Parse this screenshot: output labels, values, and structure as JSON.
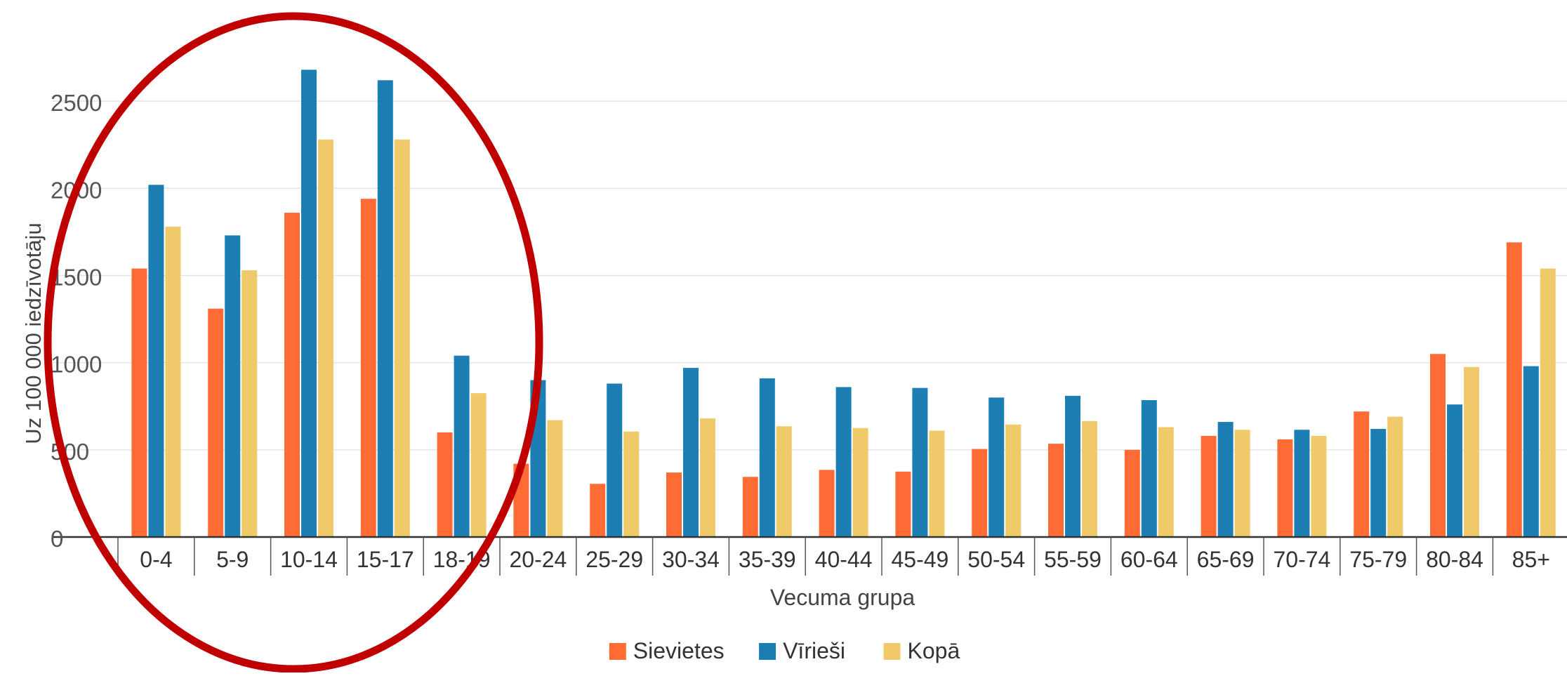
{
  "chart_data": {
    "type": "bar",
    "xlabel": "Vecuma grupa",
    "ylabel": "Uz 100 000 iedzīvotāju",
    "ylim": [
      0,
      2500
    ],
    "yticks": [
      0,
      500,
      1000,
      1500,
      2000,
      2500
    ],
    "grid": true,
    "legend_position": "bottom",
    "categories": [
      "0-4",
      "5-9",
      "10-14",
      "15-17",
      "18-19",
      "20-24",
      "25-29",
      "30-34",
      "35-39",
      "40-44",
      "45-49",
      "50-54",
      "55-59",
      "60-64",
      "65-69",
      "70-74",
      "75-79",
      "80-84",
      "85+"
    ],
    "series": [
      {
        "name": "Sievietes",
        "color": "#FF6B35",
        "values": [
          1540,
          1310,
          1860,
          1940,
          600,
          420,
          305,
          370,
          345,
          385,
          375,
          505,
          535,
          500,
          580,
          560,
          720,
          1050,
          1690
        ]
      },
      {
        "name": "Vīrieši",
        "color": "#1C7EB2",
        "values": [
          2020,
          1730,
          2680,
          2620,
          1040,
          900,
          880,
          970,
          910,
          860,
          855,
          800,
          810,
          785,
          660,
          615,
          620,
          760,
          980
        ]
      },
      {
        "name": "Kopā",
        "color": "#F0C96A",
        "values": [
          1780,
          1530,
          2280,
          2280,
          825,
          670,
          605,
          680,
          635,
          625,
          610,
          645,
          665,
          630,
          615,
          580,
          690,
          975,
          1540
        ]
      }
    ],
    "annotation": {
      "shape": "ellipse",
      "color": "#C00000",
      "highlights": [
        "0-4",
        "5-9",
        "10-14",
        "15-17",
        "18-19"
      ]
    }
  }
}
